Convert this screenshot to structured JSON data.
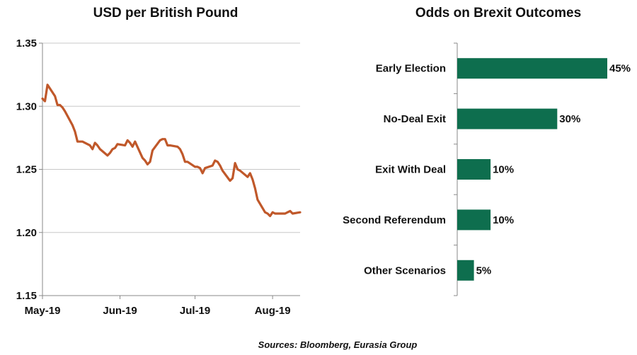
{
  "colors": {
    "line": "#C0582A",
    "bar": "#0E6E4E",
    "grid": "#c8c8c8",
    "axis": "#8a8a8a"
  },
  "chart_data": [
    {
      "type": "line",
      "title": "USD per British Pound",
      "xlabel": "",
      "ylabel": "",
      "ylim": [
        1.15,
        1.35
      ],
      "y_ticks": [
        "1.15",
        "1.20",
        "1.25",
        "1.30",
        "1.35"
      ],
      "x_tick_labels": [
        "May-19",
        "Jun-19",
        "Jul-19",
        "Aug-19"
      ],
      "x_range": [
        "2019-05-01",
        "2019-08-12"
      ],
      "grid": true,
      "series": [
        {
          "x": [
            "2019-05-01",
            "2019-05-02",
            "2019-05-03",
            "2019-05-06",
            "2019-05-07",
            "2019-05-08",
            "2019-05-09",
            "2019-05-10",
            "2019-05-13",
            "2019-05-14",
            "2019-05-15",
            "2019-05-16",
            "2019-05-17",
            "2019-05-20",
            "2019-05-21",
            "2019-05-22",
            "2019-05-23",
            "2019-05-24",
            "2019-05-27",
            "2019-05-28",
            "2019-05-29",
            "2019-05-30",
            "2019-05-31",
            "2019-06-03",
            "2019-06-04",
            "2019-06-05",
            "2019-06-06",
            "2019-06-07",
            "2019-06-10",
            "2019-06-11",
            "2019-06-12",
            "2019-06-13",
            "2019-06-14",
            "2019-06-17",
            "2019-06-18",
            "2019-06-19",
            "2019-06-20",
            "2019-06-21",
            "2019-06-24",
            "2019-06-25",
            "2019-06-26",
            "2019-06-27",
            "2019-06-28",
            "2019-07-01",
            "2019-07-02",
            "2019-07-03",
            "2019-07-04",
            "2019-07-05",
            "2019-07-08",
            "2019-07-09",
            "2019-07-10",
            "2019-07-11",
            "2019-07-12",
            "2019-07-15",
            "2019-07-16",
            "2019-07-17",
            "2019-07-18",
            "2019-07-19",
            "2019-07-22",
            "2019-07-23",
            "2019-07-24",
            "2019-07-25",
            "2019-07-26",
            "2019-07-29",
            "2019-07-30",
            "2019-07-31",
            "2019-08-01",
            "2019-08-02",
            "2019-08-05",
            "2019-08-06",
            "2019-08-07",
            "2019-08-08",
            "2019-08-09",
            "2019-08-12"
          ],
          "y": [
            1.306,
            1.304,
            1.317,
            1.308,
            1.301,
            1.301,
            1.299,
            1.296,
            1.285,
            1.28,
            1.272,
            1.272,
            1.272,
            1.269,
            1.266,
            1.271,
            1.269,
            1.266,
            1.261,
            1.263,
            1.266,
            1.267,
            1.27,
            1.269,
            1.273,
            1.271,
            1.268,
            1.272,
            1.259,
            1.257,
            1.254,
            1.256,
            1.265,
            1.273,
            1.274,
            1.274,
            1.269,
            1.269,
            1.268,
            1.266,
            1.262,
            1.256,
            1.256,
            1.252,
            1.252,
            1.251,
            1.247,
            1.251,
            1.253,
            1.257,
            1.256,
            1.253,
            1.249,
            1.241,
            1.243,
            1.255,
            1.25,
            1.249,
            1.244,
            1.247,
            1.242,
            1.235,
            1.226,
            1.216,
            1.215,
            1.213,
            1.216,
            1.215,
            1.215,
            1.215,
            1.216,
            1.217,
            1.215,
            1.216
          ]
        }
      ]
    },
    {
      "type": "bar",
      "orientation": "horizontal",
      "title": "Odds on Brexit Outcomes",
      "categories": [
        "Early Election",
        "No-Deal Exit",
        "Exit With Deal",
        "Second Referendum",
        "Other Scenarios"
      ],
      "values": [
        45,
        30,
        10,
        10,
        5
      ],
      "value_labels": [
        "45%",
        "30%",
        "10%",
        "10%",
        "5%"
      ],
      "unit": "%",
      "grid": false
    }
  ],
  "source_note": "Sources: Bloomberg, Eurasia Group"
}
